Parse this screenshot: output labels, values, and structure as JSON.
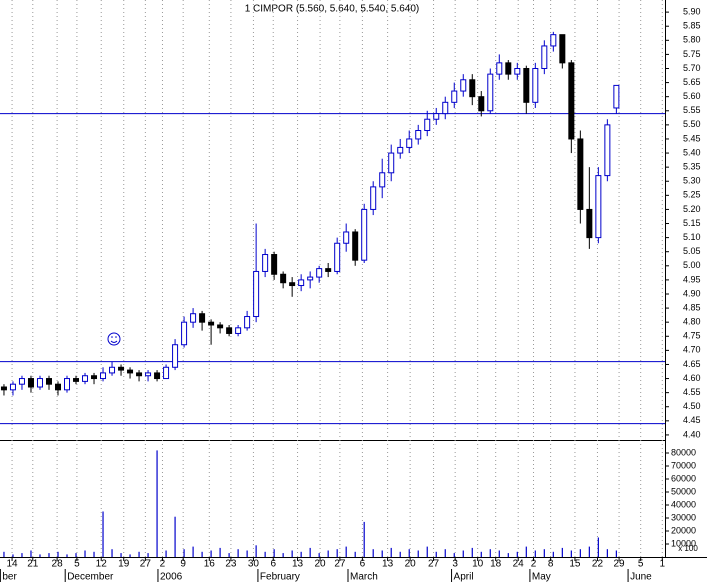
{
  "chart_data": {
    "type": "candlestick",
    "title": "1 CIMPOR (5.560, 5.640, 5.540, 5.640)",
    "open": [
      4.57,
      4.56,
      4.58,
      4.6,
      4.57,
      4.6,
      4.58,
      4.56,
      4.6,
      4.59,
      4.61,
      4.6,
      4.62,
      4.64,
      4.63,
      4.62,
      4.61,
      4.62,
      4.6,
      4.64,
      4.72,
      4.8,
      4.83,
      4.8,
      4.79,
      4.78,
      4.76,
      4.78,
      4.82,
      4.98,
      5.04,
      4.97,
      4.94,
      4.93,
      4.95,
      4.96,
      4.99,
      4.98,
      5.08,
      5.12,
      5.02,
      5.2,
      5.28,
      5.33,
      5.4,
      5.42,
      5.45,
      5.48,
      5.52,
      5.54,
      5.58,
      5.62,
      5.66,
      5.6,
      5.55,
      5.68,
      5.72,
      5.68,
      5.7,
      5.58,
      5.7,
      5.78,
      5.82,
      5.72,
      5.45,
      5.2,
      5.1,
      5.32,
      5.56
    ],
    "high": [
      4.58,
      4.59,
      4.61,
      4.61,
      4.61,
      4.61,
      4.59,
      4.61,
      4.61,
      4.62,
      4.62,
      4.64,
      4.66,
      4.65,
      4.64,
      4.63,
      4.63,
      4.63,
      4.65,
      4.74,
      4.82,
      4.85,
      4.84,
      4.81,
      4.8,
      4.79,
      4.79,
      4.84,
      5.15,
      5.06,
      5.05,
      4.98,
      4.96,
      4.97,
      4.98,
      5.0,
      5.01,
      5.1,
      5.15,
      5.13,
      5.22,
      5.3,
      5.38,
      5.43,
      5.45,
      5.48,
      5.5,
      5.55,
      5.56,
      5.6,
      5.65,
      5.68,
      5.68,
      5.62,
      5.7,
      5.75,
      5.73,
      5.72,
      5.71,
      5.72,
      5.8,
      5.83,
      5.82,
      5.73,
      5.48,
      5.35,
      5.35,
      5.52,
      5.64
    ],
    "low": [
      4.54,
      4.54,
      4.56,
      4.55,
      4.56,
      4.56,
      4.54,
      4.55,
      4.58,
      4.58,
      4.58,
      4.59,
      4.61,
      4.61,
      4.6,
      4.59,
      4.59,
      4.59,
      4.6,
      4.63,
      4.71,
      4.78,
      4.77,
      4.72,
      4.76,
      4.75,
      4.75,
      4.77,
      4.8,
      4.96,
      4.95,
      4.92,
      4.89,
      4.91,
      4.92,
      4.94,
      4.96,
      4.97,
      5.05,
      5.0,
      5.01,
      5.18,
      5.24,
      5.3,
      5.38,
      5.4,
      5.43,
      5.46,
      5.5,
      5.52,
      5.56,
      5.6,
      5.57,
      5.53,
      5.54,
      5.66,
      5.66,
      5.66,
      5.54,
      5.56,
      5.68,
      5.76,
      5.7,
      5.4,
      5.15,
      5.06,
      5.08,
      5.3,
      5.54
    ],
    "close": [
      4.56,
      4.58,
      4.6,
      4.57,
      4.6,
      4.58,
      4.56,
      4.6,
      4.59,
      4.61,
      4.6,
      4.62,
      4.64,
      4.63,
      4.62,
      4.61,
      4.62,
      4.6,
      4.64,
      4.72,
      4.8,
      4.83,
      4.8,
      4.79,
      4.78,
      4.76,
      4.78,
      4.82,
      4.98,
      5.04,
      4.97,
      4.94,
      4.93,
      4.95,
      4.96,
      4.99,
      4.98,
      5.08,
      5.12,
      5.02,
      5.2,
      5.28,
      5.33,
      5.4,
      5.42,
      5.45,
      5.48,
      5.52,
      5.54,
      5.58,
      5.62,
      5.66,
      5.6,
      5.55,
      5.68,
      5.72,
      5.68,
      5.7,
      5.58,
      5.7,
      5.78,
      5.82,
      5.72,
      5.45,
      5.2,
      5.1,
      5.32,
      5.5,
      5.64
    ],
    "volume": [
      4000,
      2000,
      3000,
      5000,
      2000,
      3000,
      4000,
      2000,
      3000,
      5000,
      4000,
      35000,
      6000,
      3000,
      2000,
      4000,
      3000,
      82000,
      5000,
      31000,
      6000,
      8000,
      4000,
      5000,
      7000,
      3000,
      6000,
      5000,
      9000,
      4000,
      6000,
      3000,
      5000,
      4000,
      7000,
      3000,
      5000,
      6000,
      8000,
      4000,
      27000,
      6000,
      5000,
      7000,
      4000,
      6000,
      5000,
      8000,
      4000,
      6000,
      3000,
      5000,
      7000,
      4000,
      6000,
      5000,
      3000,
      4000,
      8000,
      5000,
      6000,
      4000,
      7000,
      5000,
      6000,
      8000,
      15000,
      6000,
      5000
    ],
    "color": "#0000cc",
    "down_color": "#000000",
    "up_fill": "#ffffff",
    "horizontal_lines": [
      5.54,
      4.66,
      4.44
    ],
    "ylim": [
      4.382,
      5.943
    ],
    "yticks": [
      {
        "value": 5.9,
        "label": "5.90"
      },
      {
        "value": 5.85,
        "label": "5.85"
      },
      {
        "value": 5.8,
        "label": "5.80"
      },
      {
        "value": 5.75,
        "label": "5.75"
      },
      {
        "value": 5.7,
        "label": "5.70"
      },
      {
        "value": 5.65,
        "label": "5.65"
      },
      {
        "value": 5.6,
        "label": "5.60"
      },
      {
        "value": 5.55,
        "label": "5.55"
      },
      {
        "value": 5.5,
        "label": "5.50"
      },
      {
        "value": 5.45,
        "label": "5.45"
      },
      {
        "value": 5.4,
        "label": "5.40"
      },
      {
        "value": 5.35,
        "label": "5.35"
      },
      {
        "value": 5.3,
        "label": "5.30"
      },
      {
        "value": 5.25,
        "label": "5.25"
      },
      {
        "value": 5.2,
        "label": "5.20"
      },
      {
        "value": 5.15,
        "label": "5.15"
      },
      {
        "value": 5.1,
        "label": "5.10"
      },
      {
        "value": 5.05,
        "label": "5.05"
      },
      {
        "value": 5.0,
        "label": "5.00"
      },
      {
        "value": 4.95,
        "label": "4.95"
      },
      {
        "value": 4.9,
        "label": "4.90"
      },
      {
        "value": 4.85,
        "label": "4.85"
      },
      {
        "value": 4.8,
        "label": "4.80"
      },
      {
        "value": 4.75,
        "label": "4.75"
      },
      {
        "value": 4.7,
        "label": "4.70"
      },
      {
        "value": 4.65,
        "label": "4.65"
      },
      {
        "value": 4.6,
        "label": "4.60"
      },
      {
        "value": 4.55,
        "label": "4.55"
      },
      {
        "value": 4.5,
        "label": "4.50"
      },
      {
        "value": 4.45,
        "label": "4.45"
      },
      {
        "value": 4.4,
        "label": "4.40"
      }
    ],
    "volume_ylim": [
      0,
      87700
    ],
    "volume_ticks": [
      80000,
      70000,
      60000,
      50000,
      40000,
      30000,
      20000,
      10000
    ],
    "volume_unit": "x 100",
    "xlim": [
      -0.44,
      73.4
    ],
    "xticks": [
      {
        "value": 0.9,
        "label": "14"
      },
      {
        "value": 3.2,
        "label": "21"
      },
      {
        "value": 5.9,
        "label": "28"
      },
      {
        "value": 8.1,
        "label": "5"
      },
      {
        "value": 10.8,
        "label": "12"
      },
      {
        "value": 13.3,
        "label": "19"
      },
      {
        "value": 15.7,
        "label": "27"
      },
      {
        "value": 17.6,
        "label": "2"
      },
      {
        "value": 19.9,
        "label": "9"
      },
      {
        "value": 22.8,
        "label": "16"
      },
      {
        "value": 25.2,
        "label": "23"
      },
      {
        "value": 27.7,
        "label": "30"
      },
      {
        "value": 29.9,
        "label": "6"
      },
      {
        "value": 32.6,
        "label": "13"
      },
      {
        "value": 35.1,
        "label": "20"
      },
      {
        "value": 37.3,
        "label": "27"
      },
      {
        "value": 39.8,
        "label": "6"
      },
      {
        "value": 42.6,
        "label": "13"
      },
      {
        "value": 45.1,
        "label": "20"
      },
      {
        "value": 47.7,
        "label": "27"
      },
      {
        "value": 50.1,
        "label": "3"
      },
      {
        "value": 52.6,
        "label": "10"
      },
      {
        "value": 54.6,
        "label": "18"
      },
      {
        "value": 57.1,
        "label": "24"
      },
      {
        "value": 58.8,
        "label": "2"
      },
      {
        "value": 60.7,
        "label": "8"
      },
      {
        "value": 63.4,
        "label": "15"
      },
      {
        "value": 65.9,
        "label": "22"
      },
      {
        "value": 68.3,
        "label": "29"
      },
      {
        "value": 70.7,
        "label": "5"
      },
      {
        "value": 73.1,
        "label": "1"
      }
    ],
    "month_ticks": [
      {
        "value": -0.4,
        "label": "ber"
      },
      {
        "value": 6.8,
        "label": "December"
      },
      {
        "value": 17.1,
        "label": "2006"
      },
      {
        "value": 28.2,
        "label": "February"
      },
      {
        "value": 38.2,
        "label": "March"
      },
      {
        "value": 49.7,
        "label": "April"
      },
      {
        "value": 58.4,
        "label": "May"
      },
      {
        "value": 69.3,
        "label": "June"
      }
    ],
    "grid": true
  }
}
